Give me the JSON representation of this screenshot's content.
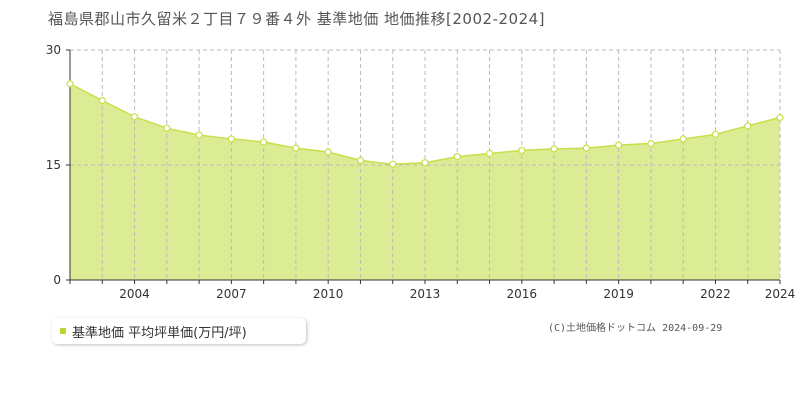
{
  "title": "福島県郡山市久留米２丁目７９番４外 基準地価 地価推移[2002-2024]",
  "legend": {
    "label": "基準地価 平均坪単価(万円/坪)"
  },
  "credit": "(C)土地価格ドットコム 2024-09-29",
  "colors": {
    "fill": "#dcec94",
    "line": "#c5e04a",
    "marker_fill": "#ffffff",
    "marker_stroke": "#c5e04a",
    "grid": "#bbbbbb",
    "axis": "#333333",
    "tick_text": "#333333",
    "legend_marker": "#b5d832"
  },
  "chart_data": {
    "type": "area",
    "x": [
      2002,
      2003,
      2004,
      2005,
      2006,
      2007,
      2008,
      2009,
      2010,
      2011,
      2012,
      2013,
      2014,
      2015,
      2016,
      2017,
      2018,
      2019,
      2020,
      2021,
      2022,
      2023,
      2024
    ],
    "series": [
      {
        "name": "基準地価 平均坪単価(万円/坪)",
        "values": [
          25.6,
          23.4,
          21.3,
          19.8,
          18.9,
          18.4,
          18.0,
          17.2,
          16.7,
          15.6,
          15.1,
          15.3,
          16.1,
          16.5,
          16.9,
          17.1,
          17.2,
          17.6,
          17.8,
          18.4,
          19.0,
          20.1,
          21.2
        ]
      }
    ],
    "ylim": [
      0,
      30
    ],
    "yticks": [
      0,
      15,
      30
    ],
    "xlim": [
      2002,
      2024
    ],
    "xticks": [
      2004,
      2007,
      2010,
      2013,
      2016,
      2019,
      2022,
      2024
    ],
    "grid": true
  }
}
